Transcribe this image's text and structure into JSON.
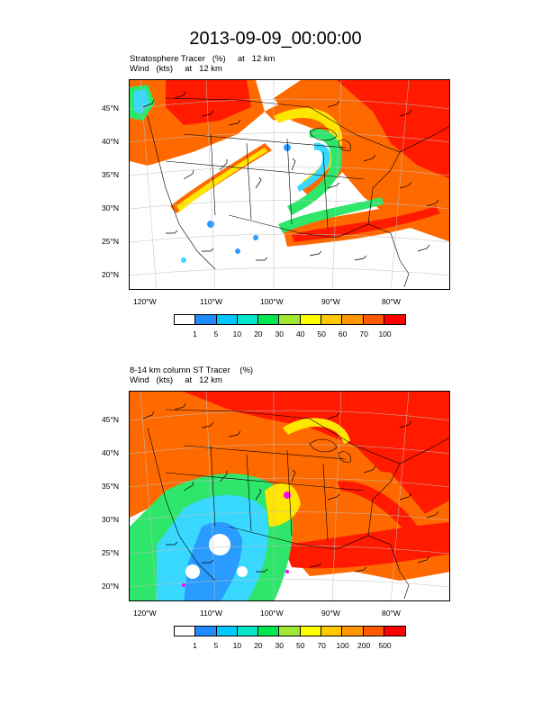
{
  "title": "2013-09-09_00:00:00",
  "panels": [
    {
      "id": "top",
      "subtitle_line1": "Stratosphere Tracer   (%)     at   12 km",
      "subtitle_line2": "Wind   (kts)     at   12 km",
      "lat_labels": [
        "45°N",
        "40°N",
        "35°N",
        "30°N",
        "25°N",
        "20°N"
      ],
      "lon_labels": [
        "120°W",
        "110°W",
        "100°W",
        "90°W",
        "80°W"
      ],
      "colorbar_labels": [
        "1",
        "5",
        "10",
        "20",
        "30",
        "40",
        "50",
        "60",
        "70",
        "100"
      ]
    },
    {
      "id": "bottom",
      "subtitle_line1": "8-14 km column ST Tracer    (%)",
      "subtitle_line2": "Wind   (kts)     at   12 km",
      "lat_labels": [
        "45°N",
        "40°N",
        "35°N",
        "30°N",
        "25°N",
        "20°N"
      ],
      "lon_labels": [
        "120°W",
        "110°W",
        "100°W",
        "90°W",
        "80°W"
      ],
      "colorbar_labels": [
        "1",
        "5",
        "10",
        "20",
        "30",
        "50",
        "70",
        "100",
        "200",
        "500"
      ]
    }
  ],
  "colorbar_colors": [
    "#ffffff",
    "#1e8cff",
    "#00c8ff",
    "#00e6c8",
    "#00e650",
    "#a0e632",
    "#ffff00",
    "#ffc800",
    "#ff9600",
    "#ff5a00",
    "#ff0000"
  ],
  "map_colors": {
    "background": "#ffffff",
    "low": "#2a9cff",
    "cyan": "#38d8ff",
    "green": "#2ee66a",
    "yellow": "#ffe600",
    "orange": "#ff6a00",
    "red": "#ff1a00",
    "boundary": "#000000",
    "grid": "#c0c0c0"
  }
}
